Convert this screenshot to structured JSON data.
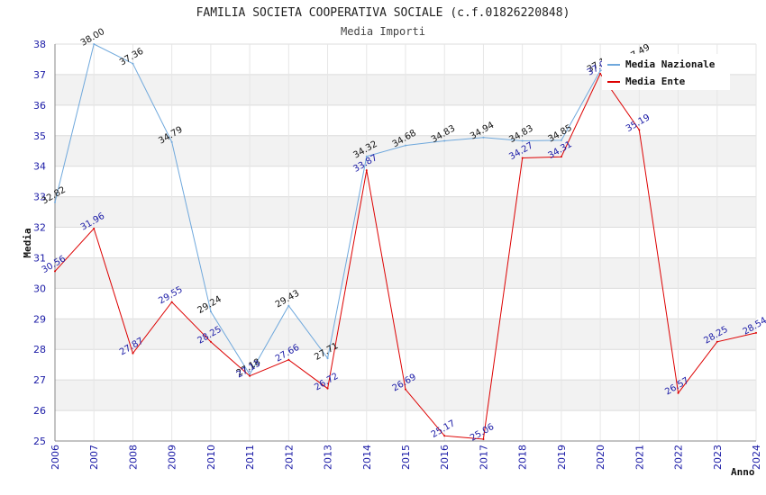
{
  "chart_data": {
    "type": "line",
    "title": "FAMILIA SOCIETA COOPERATIVA SOCIALE (c.f.01826220848)",
    "subtitle": "Media Importi",
    "xlabel": "Anno",
    "ylabel": "Media",
    "x": [
      "2006",
      "2007",
      "2008",
      "2009",
      "2010",
      "2011",
      "2012",
      "2013",
      "2014",
      "2015",
      "2016",
      "2017",
      "2018",
      "2019",
      "2020",
      "2021",
      "2022",
      "2023",
      "2024"
    ],
    "ylim": [
      25,
      38
    ],
    "yticks": [
      "25",
      "26",
      "27",
      "28",
      "29",
      "30",
      "31",
      "32",
      "33",
      "34",
      "35",
      "36",
      "37",
      "38"
    ],
    "grid": true,
    "legend_position": "top-right",
    "series": [
      {
        "name": "Media Nazionale",
        "color": "#6fa8dc",
        "label_color": "#111111",
        "values": [
          32.82,
          38.0,
          37.36,
          34.79,
          29.24,
          27.18,
          29.43,
          27.71,
          34.32,
          34.68,
          34.83,
          34.94,
          34.83,
          34.85,
          37.13,
          37.49,
          null,
          null,
          null
        ],
        "labels": [
          "32.82",
          "38.00",
          "37.36",
          "34.79",
          "29.24",
          "27.18",
          "29.43",
          "27.71",
          "34.32",
          "34.68",
          "34.83",
          "34.94",
          "34.83",
          "34.85",
          "37.13",
          "37.49",
          "",
          "",
          ""
        ]
      },
      {
        "name": "Media Ente",
        "color": "#dd0000",
        "label_color": "#1a1aa6",
        "values": [
          30.56,
          31.96,
          27.87,
          29.55,
          28.25,
          27.13,
          27.66,
          26.72,
          33.87,
          26.69,
          25.17,
          25.06,
          34.27,
          34.31,
          37.03,
          35.19,
          26.57,
          28.25,
          28.54
        ],
        "labels": [
          "30.56",
          "31.96",
          "27.87",
          "29.55",
          "28.25",
          "27.13",
          "27.66",
          "26.72",
          "33.87",
          "26.69",
          "25.17",
          "25.06",
          "34.27",
          "34.31",
          "37.03",
          "35.19",
          "26.57",
          "28.25",
          "28.54"
        ]
      }
    ]
  }
}
